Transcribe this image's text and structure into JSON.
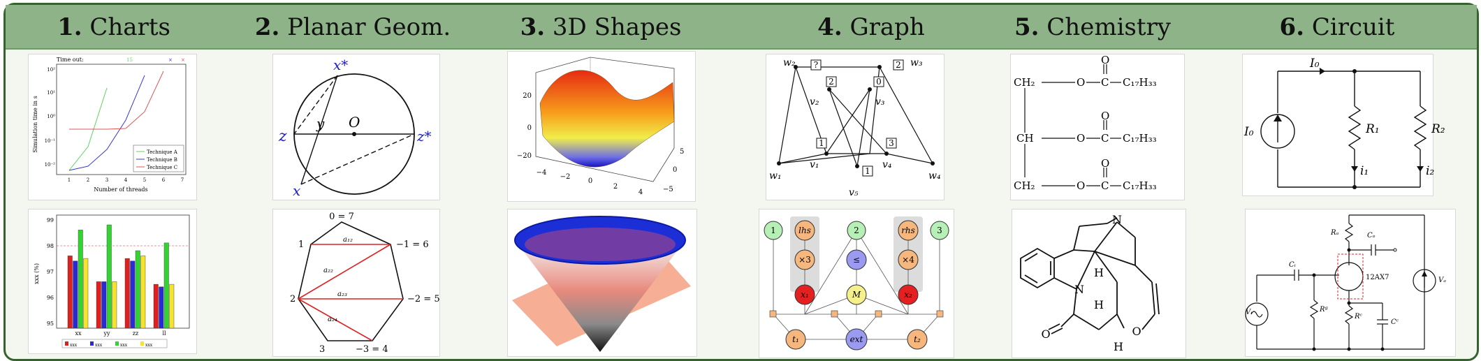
{
  "columns": [
    {
      "number": "1.",
      "title": "Charts"
    },
    {
      "number": "2.",
      "title": "Planar Geom."
    },
    {
      "number": "3.",
      "title": "3D Shapes"
    },
    {
      "number": "4.",
      "title": "Graph"
    },
    {
      "number": "5.",
      "title": "Chemistry"
    },
    {
      "number": "6.",
      "title": "Circuit"
    }
  ],
  "charts": {
    "line": {
      "header_text": "Time out:",
      "ylabel": "Simulation time in s",
      "xlabel": "Number of threads",
      "xticks": [
        "1",
        "2",
        "3",
        "4",
        "5",
        "6",
        "7"
      ],
      "yticks": [
        "10²",
        "10¹",
        "10⁰",
        "10⁻¹",
        "10⁻²"
      ],
      "legend": [
        "Technique A",
        "Technique B",
        "Technique C"
      ],
      "colors": [
        "#5fd35f",
        "#3a3acf",
        "#e05555"
      ]
    },
    "bar": {
      "ylabel": "xxx (%)",
      "yticks": [
        "99",
        "98",
        "97",
        "96",
        "95"
      ],
      "categories": [
        "xx",
        "yy",
        "zz",
        "ll"
      ],
      "legend": [
        "xxx",
        "xxx",
        "xxx",
        "xxx"
      ],
      "colors": [
        "#e01f1f",
        "#2b2bd6",
        "#31d431",
        "#f5e42b"
      ]
    }
  },
  "planar": {
    "circle": {
      "top": "x*",
      "left": "z",
      "right": "z*",
      "bottom": "x",
      "center": "O",
      "chord": "y"
    },
    "heptagon": {
      "top": "0 = 7",
      "left_top": "1",
      "right_top": "−1 = 6",
      "left": "2",
      "right": "−2 = 5",
      "bottom_left": "3",
      "bottom_right": "−3 = 4",
      "edges": [
        "a₁₂",
        "a₂₂",
        "a₂₃",
        "a₂₄"
      ]
    }
  },
  "surface3d": {
    "yticks": [
      "20",
      "0",
      "−20"
    ],
    "xticks": [
      "−4",
      "−2",
      "0",
      "2",
      "4"
    ],
    "zticks": [
      "5",
      "0",
      "−5"
    ]
  },
  "graph": {
    "top": {
      "w2": "w₂",
      "w3": "w₃",
      "v2": "v₂",
      "v3": "v₃",
      "v1": "v₁",
      "v4": "v₄",
      "w1": "w₁",
      "w4": "w₄",
      "v5": "v₅",
      "boxes": [
        "?",
        "2",
        "2",
        "0",
        "1",
        "3",
        "1"
      ]
    },
    "bottom": {
      "nodes": [
        "1",
        "lhs",
        "2",
        "rhs",
        "3",
        "×3",
        "≤",
        "×4",
        "x₁",
        "M",
        "x₂",
        "t₁",
        "ext",
        "t₂"
      ]
    }
  },
  "chemistry": {
    "lipid_rows": [
      {
        "left": "CH₂",
        "o": "O",
        "c": "C",
        "chain": "C₁₇H₃₃",
        "carbonyl": "O"
      },
      {
        "left": "CH",
        "o": "O",
        "c": "C",
        "chain": "C₁₇H₃₃",
        "carbonyl": "O"
      },
      {
        "left": "CH₂",
        "o": "O",
        "c": "C",
        "chain": "C₁₇H₃₃",
        "carbonyl": "O"
      }
    ],
    "strychnine": {
      "atoms": [
        "N",
        "N",
        "H",
        "H",
        "H",
        "O",
        "O"
      ]
    }
  },
  "circuit": {
    "top": {
      "source": "I₀",
      "current": "I₀",
      "r1": "R₁",
      "r2": "R₂",
      "i1": "i₁",
      "i2": "i₂"
    },
    "bottom": {
      "ra": "Rₐ",
      "co": "Cₒ",
      "ci": "Cᵢ",
      "tube": "12AX7",
      "vi": "Vᵢ",
      "rg": "Rᵍ",
      "rc": "Rᶜ",
      "cc": "Cᶜ",
      "va": "Vₐ"
    }
  }
}
